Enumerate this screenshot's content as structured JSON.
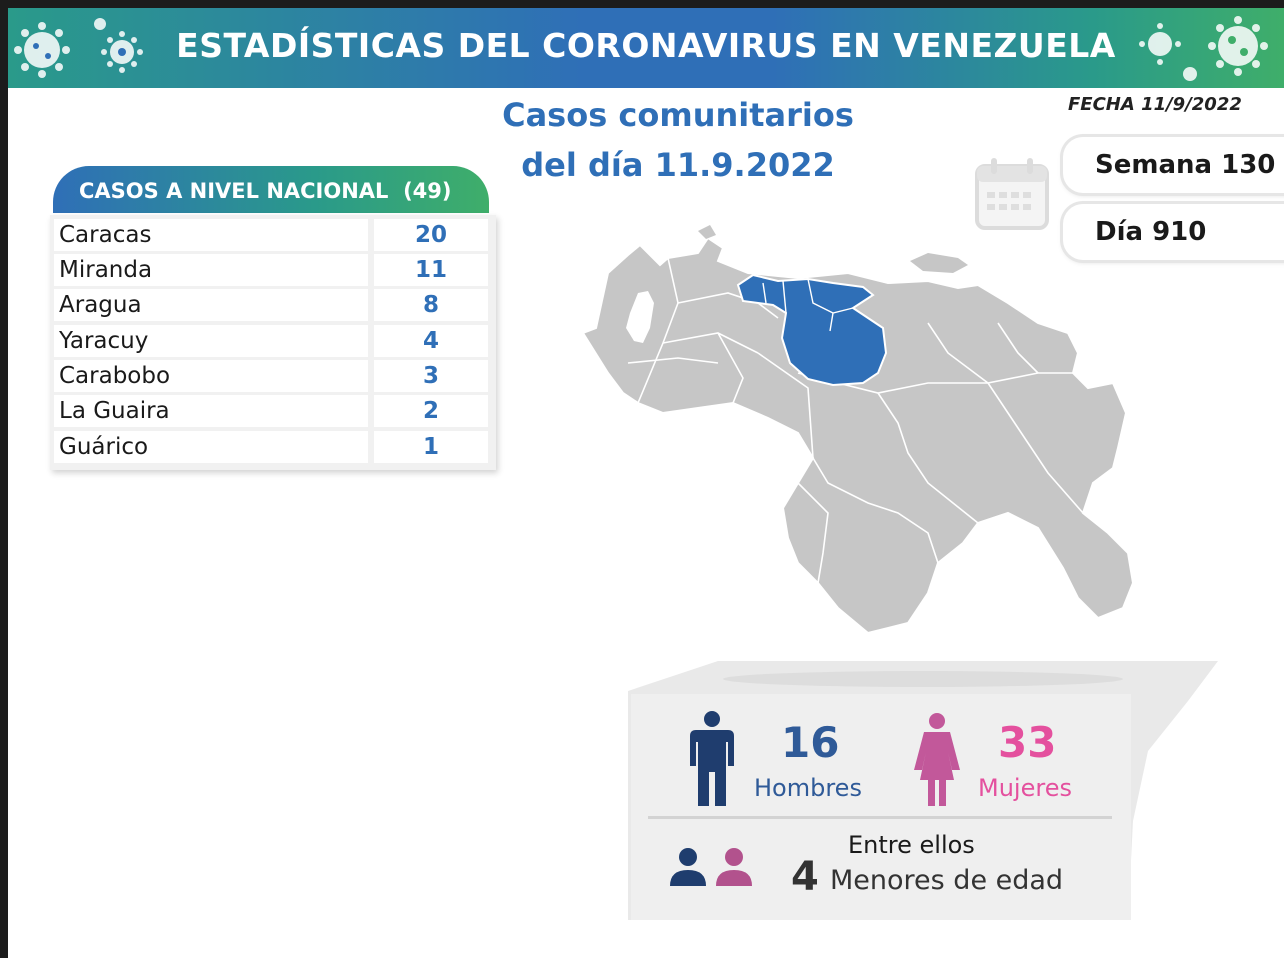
{
  "header": {
    "title": "ESTADÍSTICAS DEL CORONAVIRUS EN VENEZUELA",
    "subtitle_line1": "Casos comunitarios",
    "subtitle_line2": "del día 11.9.2022",
    "date": "FECHA 11/9/2022"
  },
  "table": {
    "heading": "CASOS A NIVEL NACIONAL",
    "total": "(49)",
    "rows": [
      {
        "state": "Caracas",
        "cases": "20"
      },
      {
        "state": "Miranda",
        "cases": "11"
      },
      {
        "state": "Aragua",
        "cases": "8"
      },
      {
        "state": "Yaracuy",
        "cases": "4"
      },
      {
        "state": "Carabobo",
        "cases": "3"
      },
      {
        "state": "La Guaira",
        "cases": "2"
      },
      {
        "state": "Guárico",
        "cases": "1"
      }
    ]
  },
  "counters": {
    "week": "Semana 130",
    "day": "Día 910"
  },
  "demographics": {
    "men_count": "16",
    "men_label": "Hombres",
    "women_count": "33",
    "women_label": "Mujeres",
    "minors_intro": "Entre ellos",
    "minors_count": "4",
    "minors_label": "Menores de edad"
  },
  "colors": {
    "primary_blue": "#2f6fb7",
    "teal": "#2a9a8a",
    "green": "#3fae6a",
    "men": "#1f3d6e",
    "women": "#c2589a",
    "highlight_state": "#2f6fb7",
    "map_base": "#c6c6c6"
  },
  "icons": [
    "virus-icon",
    "calendar-icon",
    "man-icon",
    "woman-icon",
    "minors-icon"
  ]
}
